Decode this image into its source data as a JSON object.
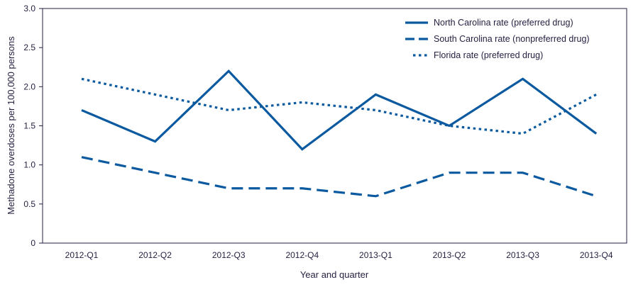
{
  "chart_data": {
    "type": "line",
    "title": "",
    "xlabel": "Year and quarter",
    "ylabel": "Methadone overdoses per 100,000 persons",
    "categories": [
      "2012-Q1",
      "2012-Q2",
      "2012-Q3",
      "2012-Q4",
      "2013-Q1",
      "2013-Q2",
      "2013-Q3",
      "2013-Q4"
    ],
    "ylim": [
      0,
      3.0
    ],
    "yticks": [
      "0",
      "0.5",
      "1.0",
      "1.5",
      "2.0",
      "2.5",
      "3.0"
    ],
    "grid": false,
    "legend_placement": "top-right",
    "color": "#0b5aa0",
    "series": [
      {
        "name": "North Carolina rate (preferred drug)",
        "style": "solid",
        "values": [
          1.7,
          1.3,
          2.2,
          1.2,
          1.9,
          1.5,
          2.1,
          1.4
        ]
      },
      {
        "name": "South Carolina rate (nonpreferred drug)",
        "style": "dashed",
        "values": [
          1.1,
          0.9,
          0.7,
          0.7,
          0.6,
          0.9,
          0.9,
          0.6
        ]
      },
      {
        "name": "Florida rate (preferred drug)",
        "style": "dotted",
        "values": [
          2.1,
          1.9,
          1.7,
          1.8,
          1.7,
          1.5,
          1.4,
          1.9
        ]
      }
    ]
  }
}
